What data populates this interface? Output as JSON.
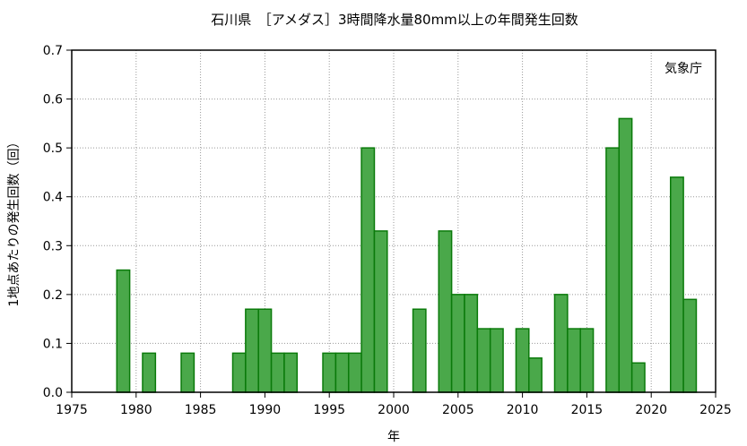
{
  "chart_data": {
    "type": "bar",
    "title": "石川県　［アメダス］3時間降水量80mm以上の年間発生回数",
    "xlabel": "年",
    "ylabel": "1地点あたりの発生回数（回）",
    "annotation": "気象庁",
    "xlim": [
      1975,
      2025
    ],
    "ylim": [
      0,
      0.7
    ],
    "xticks": [
      1975,
      1980,
      1985,
      1990,
      1995,
      2000,
      2005,
      2010,
      2015,
      2020,
      2025
    ],
    "yticks": [
      0.0,
      0.1,
      0.2,
      0.3,
      0.4,
      0.5,
      0.6,
      0.7
    ],
    "xtick_labels": [
      "1975",
      "1980",
      "1985",
      "1990",
      "1995",
      "2000",
      "2005",
      "2010",
      "2015",
      "2020",
      "2025"
    ],
    "ytick_labels": [
      "0.0",
      "0.1",
      "0.2",
      "0.3",
      "0.4",
      "0.5",
      "0.6",
      "0.7"
    ],
    "grid": true,
    "bar_color": "#4aa84a",
    "bar_edge_color": "#0a7a0a",
    "x": [
      1979,
      1981,
      1984,
      1988,
      1989,
      1990,
      1991,
      1992,
      1995,
      1996,
      1997,
      1998,
      1999,
      2002,
      2004,
      2005,
      2006,
      2007,
      2008,
      2010,
      2011,
      2013,
      2014,
      2015,
      2017,
      2018,
      2019,
      2022,
      2023
    ],
    "values": [
      0.25,
      0.08,
      0.08,
      0.08,
      0.17,
      0.17,
      0.08,
      0.08,
      0.08,
      0.08,
      0.08,
      0.5,
      0.33,
      0.17,
      0.33,
      0.2,
      0.2,
      0.13,
      0.13,
      0.13,
      0.07,
      0.2,
      0.13,
      0.13,
      0.5,
      0.56,
      0.06,
      0.44,
      0.19
    ]
  }
}
